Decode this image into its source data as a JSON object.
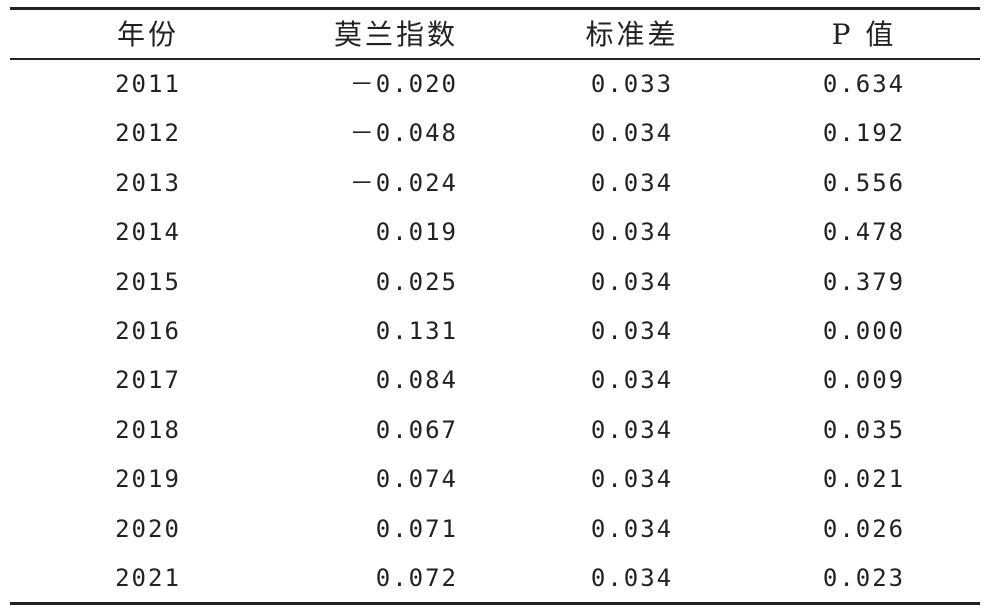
{
  "table": {
    "header": [
      "年份",
      "莫兰指数",
      "标准差",
      "P 值"
    ],
    "rows": [
      [
        "2011",
        "－0.020",
        "0.033",
        "0.634"
      ],
      [
        "2012",
        "－0.048",
        "0.034",
        "0.192"
      ],
      [
        "2013",
        "－0.024",
        "0.034",
        "0.556"
      ],
      [
        "2014",
        "0.019",
        "0.034",
        "0.478"
      ],
      [
        "2015",
        "0.025",
        "0.034",
        "0.379"
      ],
      [
        "2016",
        "0.131",
        "0.034",
        "0.000"
      ],
      [
        "2017",
        "0.084",
        "0.034",
        "0.009"
      ],
      [
        "2018",
        "0.067",
        "0.034",
        "0.035"
      ],
      [
        "2019",
        "0.074",
        "0.034",
        "0.021"
      ],
      [
        "2020",
        "0.071",
        "0.034",
        "0.026"
      ],
      [
        "2021",
        "0.072",
        "0.034",
        "0.023"
      ]
    ]
  }
}
